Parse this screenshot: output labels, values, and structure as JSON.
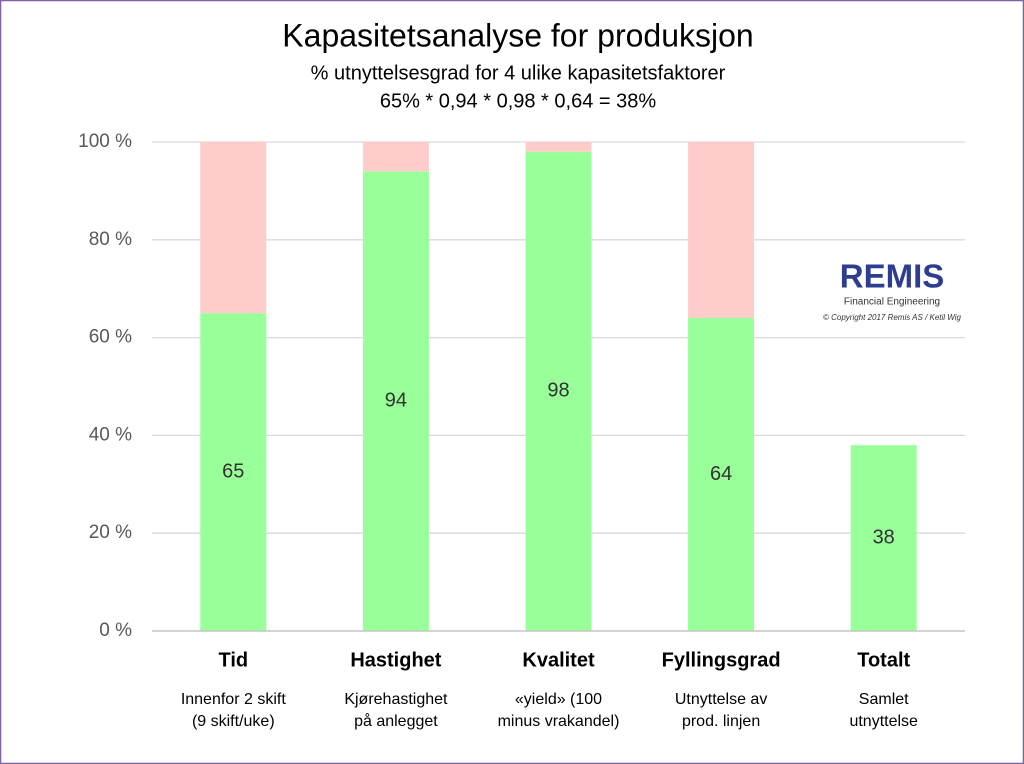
{
  "chart_data": {
    "type": "stacked_bar",
    "title": "Kapasitetsanalyse for produksjon",
    "subtitle": "% utnyttelsesgrad for 4 ulike kapasitetsfaktorer",
    "formula": "65% * 0,94 * 0,98 * 0,64 = 38%",
    "categories": [
      "Tid",
      "Hastighet",
      "Kvalitet",
      "Fyllingsgrad",
      "Totalt"
    ],
    "descriptions": [
      [
        "Innenfor 2 skift",
        "(9 skift/uke)"
      ],
      [
        "Kjørehastighet",
        "på anlegget"
      ],
      [
        "«yield» (100",
        "minus vrakandel)"
      ],
      [
        "Utnyttelse av",
        "prod. linjen"
      ],
      [
        "Samlet",
        "utnyttelse"
      ]
    ],
    "series": [
      {
        "color": "#99ff99",
        "values": [
          65,
          94,
          98,
          64,
          38
        ],
        "show_labels": true
      },
      {
        "color": "#ffcccc",
        "values": [
          35,
          6,
          2,
          36,
          null
        ],
        "show_labels": false
      }
    ],
    "ylim": [
      0,
      100
    ],
    "yticks": [
      {
        "value": 0,
        "label": "0 %"
      },
      {
        "value": 20,
        "label": "20 %"
      },
      {
        "value": 40,
        "label": "40 %"
      },
      {
        "value": 60,
        "label": "60 %"
      },
      {
        "value": 80,
        "label": "80 %"
      },
      {
        "value": 100,
        "label": "100 %"
      }
    ],
    "grid": true,
    "logo": {
      "name": "REMIS",
      "tagline": "Financial Engineering",
      "copyright": "© Copyright 2017 Remis AS / Ketil Wig"
    }
  }
}
